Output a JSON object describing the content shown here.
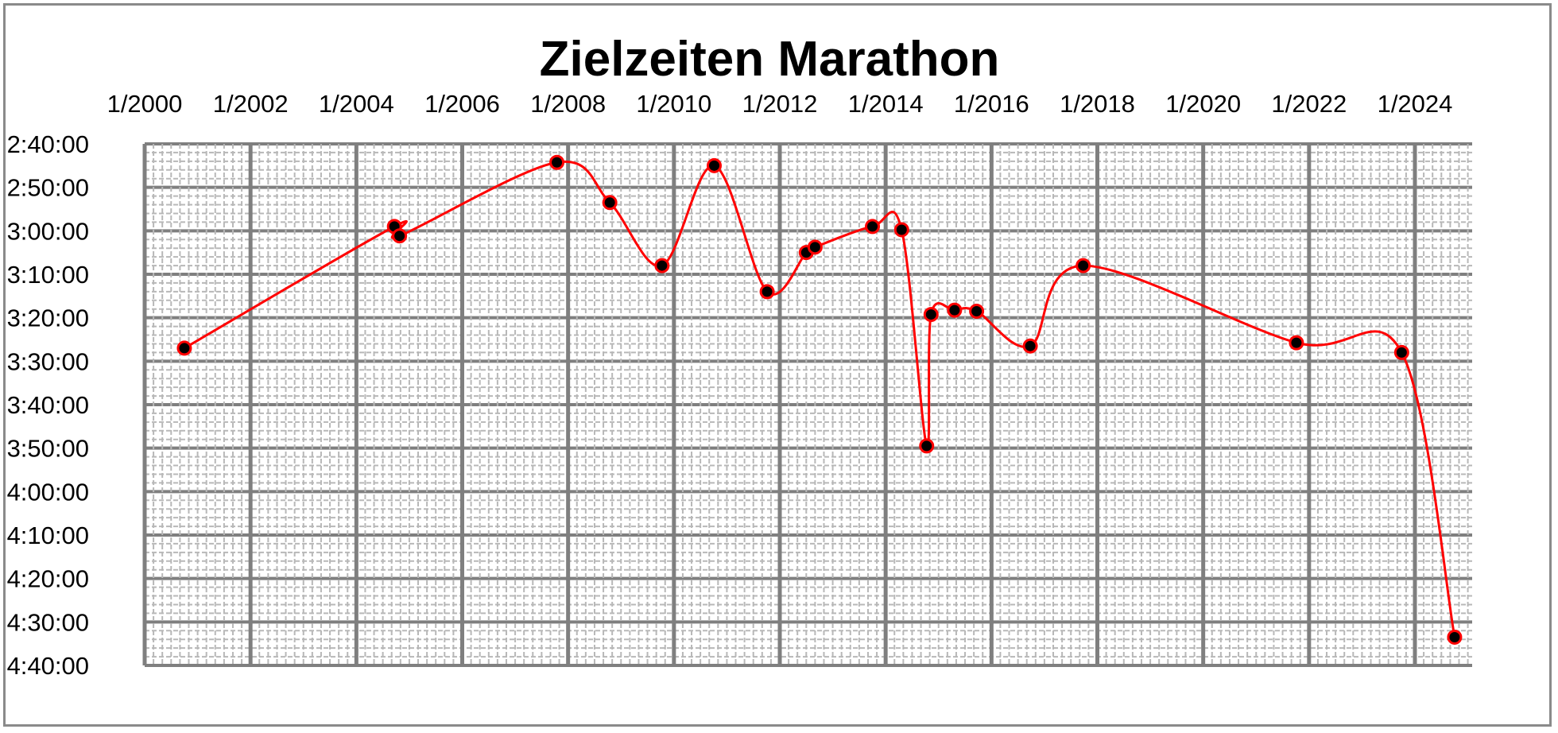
{
  "chart_data": {
    "type": "line",
    "title": "Zielzeiten Marathon",
    "xlabel": "",
    "ylabel": "",
    "x_axis_position": "top",
    "y_axis_reversed": true,
    "xlim": [
      "2000-01-01",
      "2025-03-01"
    ],
    "ylim": [
      "2:40:00",
      "4:40:00"
    ],
    "x_tick_labels": [
      "1/2000",
      "1/2002",
      "1/2004",
      "1/2006",
      "1/2008",
      "1/2010",
      "1/2012",
      "1/2014",
      "1/2016",
      "1/2018",
      "1/2020",
      "1/2022",
      "1/2024"
    ],
    "y_tick_labels": [
      "2:40:00",
      "2:50:00",
      "3:00:00",
      "3:10:00",
      "3:20:00",
      "3:30:00",
      "3:40:00",
      "3:50:00",
      "4:00:00",
      "4:10:00",
      "4:20:00",
      "4:30:00",
      "4:40:00"
    ],
    "grid": true,
    "line_color": "#ff0000",
    "marker_fill": "#000000",
    "marker_edge": "#ff0000",
    "series": [
      {
        "points": [
          {
            "x": "2000-10-01",
            "y": "3:27:00"
          },
          {
            "x": "2004-09-20",
            "y": "2:59:00"
          },
          {
            "x": "2004-10-25",
            "y": "3:01:10"
          },
          {
            "x": "2007-10-15",
            "y": "2:44:15"
          },
          {
            "x": "2008-10-15",
            "y": "2:53:30"
          },
          {
            "x": "2009-10-10",
            "y": "3:08:00"
          },
          {
            "x": "2010-10-05",
            "y": "2:45:00"
          },
          {
            "x": "2011-10-05",
            "y": "3:14:00"
          },
          {
            "x": "2012-07-01",
            "y": "3:05:00"
          },
          {
            "x": "2012-09-01",
            "y": "3:03:45"
          },
          {
            "x": "2013-10-01",
            "y": "2:59:00"
          },
          {
            "x": "2014-04-20",
            "y": "2:59:45"
          },
          {
            "x": "2014-10-10",
            "y": "3:49:30"
          },
          {
            "x": "2014-11-10",
            "y": "3:19:15"
          },
          {
            "x": "2015-04-20",
            "y": "3:18:15"
          },
          {
            "x": "2015-09-20",
            "y": "3:18:30"
          },
          {
            "x": "2016-09-25",
            "y": "3:26:30"
          },
          {
            "x": "2017-09-25",
            "y": "3:08:00"
          },
          {
            "x": "2021-10-05",
            "y": "3:25:45"
          },
          {
            "x": "2023-10-01",
            "y": "3:28:00"
          },
          {
            "x": "2024-10-01",
            "y": "4:33:30"
          }
        ]
      }
    ]
  }
}
